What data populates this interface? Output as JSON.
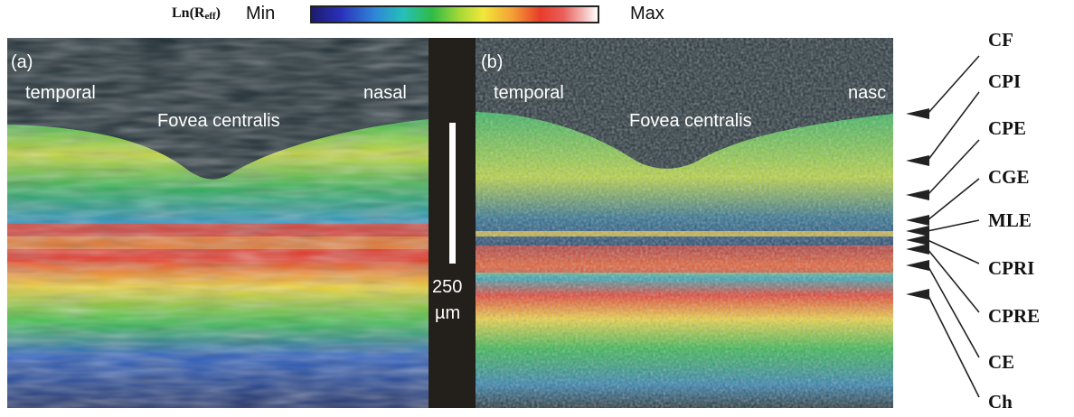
{
  "colorscale": {
    "title_main": "Ln(R",
    "title_sub": "eff",
    "title_close": ")",
    "min_label": "Min",
    "max_label": "Max"
  },
  "panel_a": {
    "label": "(a)",
    "temporal": "temporal",
    "nasal": "nasal",
    "fovea": "Fovea centralis"
  },
  "panel_b": {
    "label": "(b)",
    "temporal": "temporal",
    "nasal": "nasc",
    "fovea": "Fovea centralis"
  },
  "scale_bar": {
    "value": "250",
    "unit": "µm"
  },
  "layers": [
    "CF",
    "CPI",
    "CPE",
    "CGE",
    "MLE",
    "CPRI",
    "CPRE",
    "CE",
    "Ch"
  ],
  "colors": {
    "background_dark": "#1e2d34",
    "divider": "#231f1b",
    "band_red": "#e5392a",
    "band_yellow": "#f0e33c",
    "green": "#2fb84a",
    "cyan": "#2bb6c4",
    "blue": "#2d49b5"
  }
}
